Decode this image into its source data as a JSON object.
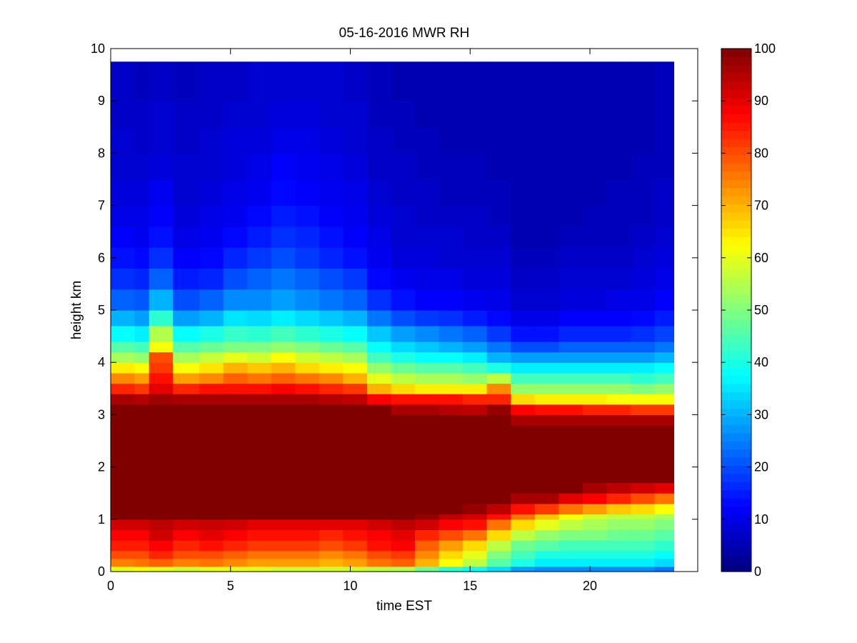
{
  "chart_data": {
    "type": "heatmap",
    "title": "05-16-2016 MWR RH",
    "xlabel": "time EST",
    "ylabel": "height km",
    "xlim": [
      0,
      24.5
    ],
    "ylim": [
      0,
      10
    ],
    "x_ticks": [
      "0",
      "5",
      "10",
      "15",
      "20"
    ],
    "y_ticks": [
      "0",
      "1",
      "2",
      "3",
      "4",
      "5",
      "6",
      "7",
      "8",
      "9",
      "10"
    ],
    "colormap": "jet",
    "color_range": [
      0,
      100
    ],
    "colorbar_ticks": [
      "0",
      "10",
      "20",
      "30",
      "40",
      "50",
      "60",
      "70",
      "80",
      "90",
      "100"
    ],
    "colorbar_placement": "right",
    "grid": false,
    "times": [
      0.0,
      1.0,
      1.6,
      2.6,
      3.7,
      4.7,
      5.7,
      6.7,
      7.7,
      8.7,
      9.7,
      10.7,
      11.7,
      12.7,
      13.7,
      14.7,
      15.7,
      16.7,
      17.7,
      18.7,
      19.7,
      20.7,
      21.7,
      22.7
    ],
    "time_end": 23.5,
    "height_top": 9.75,
    "profile_heights_km": [
      0,
      0.1,
      0.25,
      0.4,
      0.6,
      0.8,
      1.0,
      1.1,
      1.3,
      1.5,
      1.7,
      2.0,
      2.5,
      2.8,
      3.0,
      3.2,
      3.4,
      3.6,
      3.8,
      4.0,
      4.2,
      4.4,
      4.7,
      5.0,
      5.4,
      5.8,
      6.2,
      6.6,
      7.0,
      7.5,
      8.0,
      8.5,
      9.0,
      9.75
    ],
    "rh_profiles_percent": [
      [
        60,
        75,
        80,
        85,
        88,
        92,
        100,
        100,
        100,
        100,
        100,
        100,
        100,
        100,
        100,
        96,
        84,
        74,
        64,
        54,
        46,
        38,
        30,
        22,
        17,
        14,
        12,
        10,
        9,
        8,
        8,
        7,
        7,
        6
      ],
      [
        62,
        76,
        80,
        85,
        88,
        92,
        100,
        100,
        100,
        100,
        100,
        100,
        100,
        100,
        100,
        95,
        82,
        72,
        62,
        52,
        44,
        36,
        28,
        21,
        16,
        13,
        11,
        10,
        9,
        8,
        7,
        7,
        6,
        6
      ],
      [
        60,
        78,
        84,
        88,
        92,
        94,
        100,
        100,
        100,
        100,
        100,
        100,
        100,
        100,
        100,
        97,
        90,
        86,
        82,
        80,
        62,
        55,
        42,
        30,
        22,
        17,
        14,
        12,
        11,
        9,
        8,
        8,
        7,
        6
      ],
      [
        58,
        75,
        80,
        84,
        88,
        92,
        100,
        100,
        100,
        100,
        100,
        100,
        100,
        100,
        100,
        96,
        84,
        72,
        62,
        54,
        46,
        38,
        28,
        20,
        15,
        12,
        10,
        9,
        8,
        8,
        7,
        7,
        6,
        6
      ],
      [
        60,
        76,
        80,
        86,
        90,
        93,
        100,
        100,
        100,
        100,
        100,
        100,
        100,
        100,
        100,
        96,
        86,
        74,
        65,
        57,
        48,
        40,
        30,
        22,
        16,
        13,
        11,
        10,
        9,
        8,
        8,
        7,
        7,
        6
      ],
      [
        60,
        74,
        78,
        84,
        88,
        92,
        100,
        100,
        100,
        100,
        100,
        100,
        100,
        100,
        100,
        96,
        86,
        78,
        70,
        60,
        50,
        43,
        35,
        26,
        20,
        16,
        13,
        11,
        10,
        9,
        9,
        8,
        7,
        7
      ],
      [
        60,
        72,
        76,
        82,
        86,
        90,
        100,
        100,
        100,
        100,
        100,
        100,
        100,
        100,
        100,
        96,
        86,
        76,
        68,
        58,
        50,
        42,
        34,
        26,
        22,
        18,
        15,
        13,
        11,
        10,
        9,
        8,
        8,
        7
      ],
      [
        58,
        72,
        76,
        82,
        86,
        90,
        100,
        100,
        100,
        100,
        100,
        100,
        100,
        100,
        100,
        96,
        88,
        78,
        70,
        62,
        52,
        44,
        36,
        28,
        24,
        20,
        17,
        15,
        13,
        12,
        10,
        9,
        8,
        8
      ],
      [
        58,
        72,
        76,
        82,
        86,
        90,
        100,
        100,
        100,
        100,
        100,
        100,
        100,
        100,
        100,
        96,
        86,
        76,
        66,
        58,
        50,
        42,
        34,
        26,
        22,
        18,
        16,
        14,
        12,
        11,
        10,
        9,
        8,
        7
      ],
      [
        58,
        70,
        74,
        80,
        84,
        90,
        100,
        100,
        100,
        100,
        100,
        100,
        100,
        100,
        100,
        95,
        84,
        74,
        64,
        56,
        48,
        40,
        32,
        24,
        20,
        16,
        14,
        12,
        11,
        10,
        9,
        8,
        8,
        7
      ],
      [
        58,
        72,
        76,
        82,
        86,
        90,
        100,
        100,
        100,
        100,
        100,
        100,
        100,
        100,
        100,
        94,
        82,
        70,
        62,
        54,
        46,
        38,
        30,
        22,
        18,
        14,
        12,
        11,
        10,
        9,
        8,
        8,
        7,
        7
      ],
      [
        56,
        76,
        80,
        86,
        88,
        92,
        100,
        100,
        100,
        100,
        100,
        100,
        100,
        100,
        100,
        88,
        70,
        60,
        52,
        44,
        38,
        32,
        24,
        17,
        13,
        11,
        10,
        9,
        8,
        7,
        7,
        6,
        6,
        6
      ],
      [
        55,
        78,
        82,
        88,
        90,
        94,
        100,
        100,
        100,
        100,
        100,
        100,
        100,
        100,
        96,
        86,
        66,
        56,
        48,
        40,
        34,
        28,
        20,
        14,
        11,
        9,
        8,
        8,
        7,
        7,
        6,
        6,
        5,
        5
      ],
      [
        48,
        70,
        74,
        78,
        84,
        92,
        98,
        100,
        100,
        100,
        100,
        100,
        100,
        100,
        96,
        86,
        64,
        54,
        46,
        38,
        32,
        26,
        18,
        12,
        10,
        9,
        8,
        7,
        7,
        6,
        6,
        5,
        5,
        5
      ],
      [
        42,
        62,
        66,
        72,
        80,
        88,
        94,
        100,
        100,
        100,
        100,
        100,
        100,
        100,
        95,
        86,
        64,
        54,
        46,
        38,
        30,
        24,
        17,
        12,
        10,
        8,
        8,
        7,
        6,
        6,
        5,
        5,
        5,
        5
      ],
      [
        38,
        56,
        60,
        66,
        76,
        86,
        92,
        98,
        100,
        100,
        100,
        100,
        100,
        100,
        94,
        84,
        64,
        52,
        44,
        36,
        28,
        22,
        15,
        11,
        9,
        8,
        7,
        7,
        6,
        6,
        5,
        5,
        5,
        5
      ],
      [
        34,
        46,
        50,
        56,
        66,
        76,
        86,
        94,
        100,
        100,
        100,
        100,
        100,
        100,
        98,
        84,
        74,
        56,
        40,
        30,
        24,
        18,
        13,
        10,
        9,
        8,
        7,
        6,
        6,
        5,
        5,
        5,
        5,
        5
      ],
      [
        28,
        40,
        44,
        48,
        56,
        66,
        76,
        86,
        96,
        100,
        100,
        100,
        100,
        96,
        88,
        66,
        52,
        44,
        36,
        28,
        20,
        14,
        10,
        8,
        7,
        6,
        5,
        5,
        5,
        5,
        5,
        5,
        5,
        5
      ],
      [
        26,
        36,
        40,
        46,
        52,
        60,
        68,
        82,
        96,
        100,
        100,
        100,
        100,
        96,
        86,
        64,
        52,
        44,
        36,
        28,
        20,
        14,
        10,
        8,
        7,
        6,
        5,
        5,
        5,
        5,
        5,
        5,
        5,
        5
      ],
      [
        26,
        36,
        40,
        44,
        50,
        56,
        62,
        76,
        90,
        100,
        100,
        100,
        100,
        96,
        86,
        64,
        52,
        44,
        36,
        28,
        22,
        16,
        12,
        9,
        8,
        7,
        6,
        5,
        5,
        5,
        5,
        5,
        5,
        5
      ],
      [
        26,
        36,
        40,
        44,
        50,
        54,
        58,
        72,
        88,
        96,
        100,
        100,
        100,
        96,
        84,
        64,
        52,
        44,
        36,
        28,
        22,
        16,
        12,
        9,
        8,
        7,
        6,
        6,
        5,
        5,
        5,
        5,
        5,
        5
      ],
      [
        26,
        36,
        40,
        44,
        48,
        52,
        56,
        68,
        84,
        94,
        100,
        100,
        100,
        96,
        84,
        62,
        52,
        44,
        36,
        28,
        22,
        16,
        12,
        10,
        8,
        7,
        6,
        6,
        6,
        5,
        5,
        5,
        5,
        5
      ],
      [
        26,
        36,
        40,
        44,
        48,
        52,
        56,
        66,
        80,
        92,
        100,
        100,
        100,
        96,
        82,
        62,
        50,
        42,
        36,
        28,
        22,
        17,
        13,
        10,
        9,
        8,
        7,
        6,
        6,
        6,
        5,
        5,
        5,
        5
      ],
      [
        24,
        34,
        38,
        42,
        46,
        50,
        54,
        62,
        76,
        90,
        100,
        100,
        100,
        96,
        82,
        62,
        52,
        44,
        38,
        30,
        24,
        19,
        15,
        12,
        10,
        9,
        8,
        7,
        7,
        6,
        6,
        6,
        6,
        6
      ]
    ]
  }
}
